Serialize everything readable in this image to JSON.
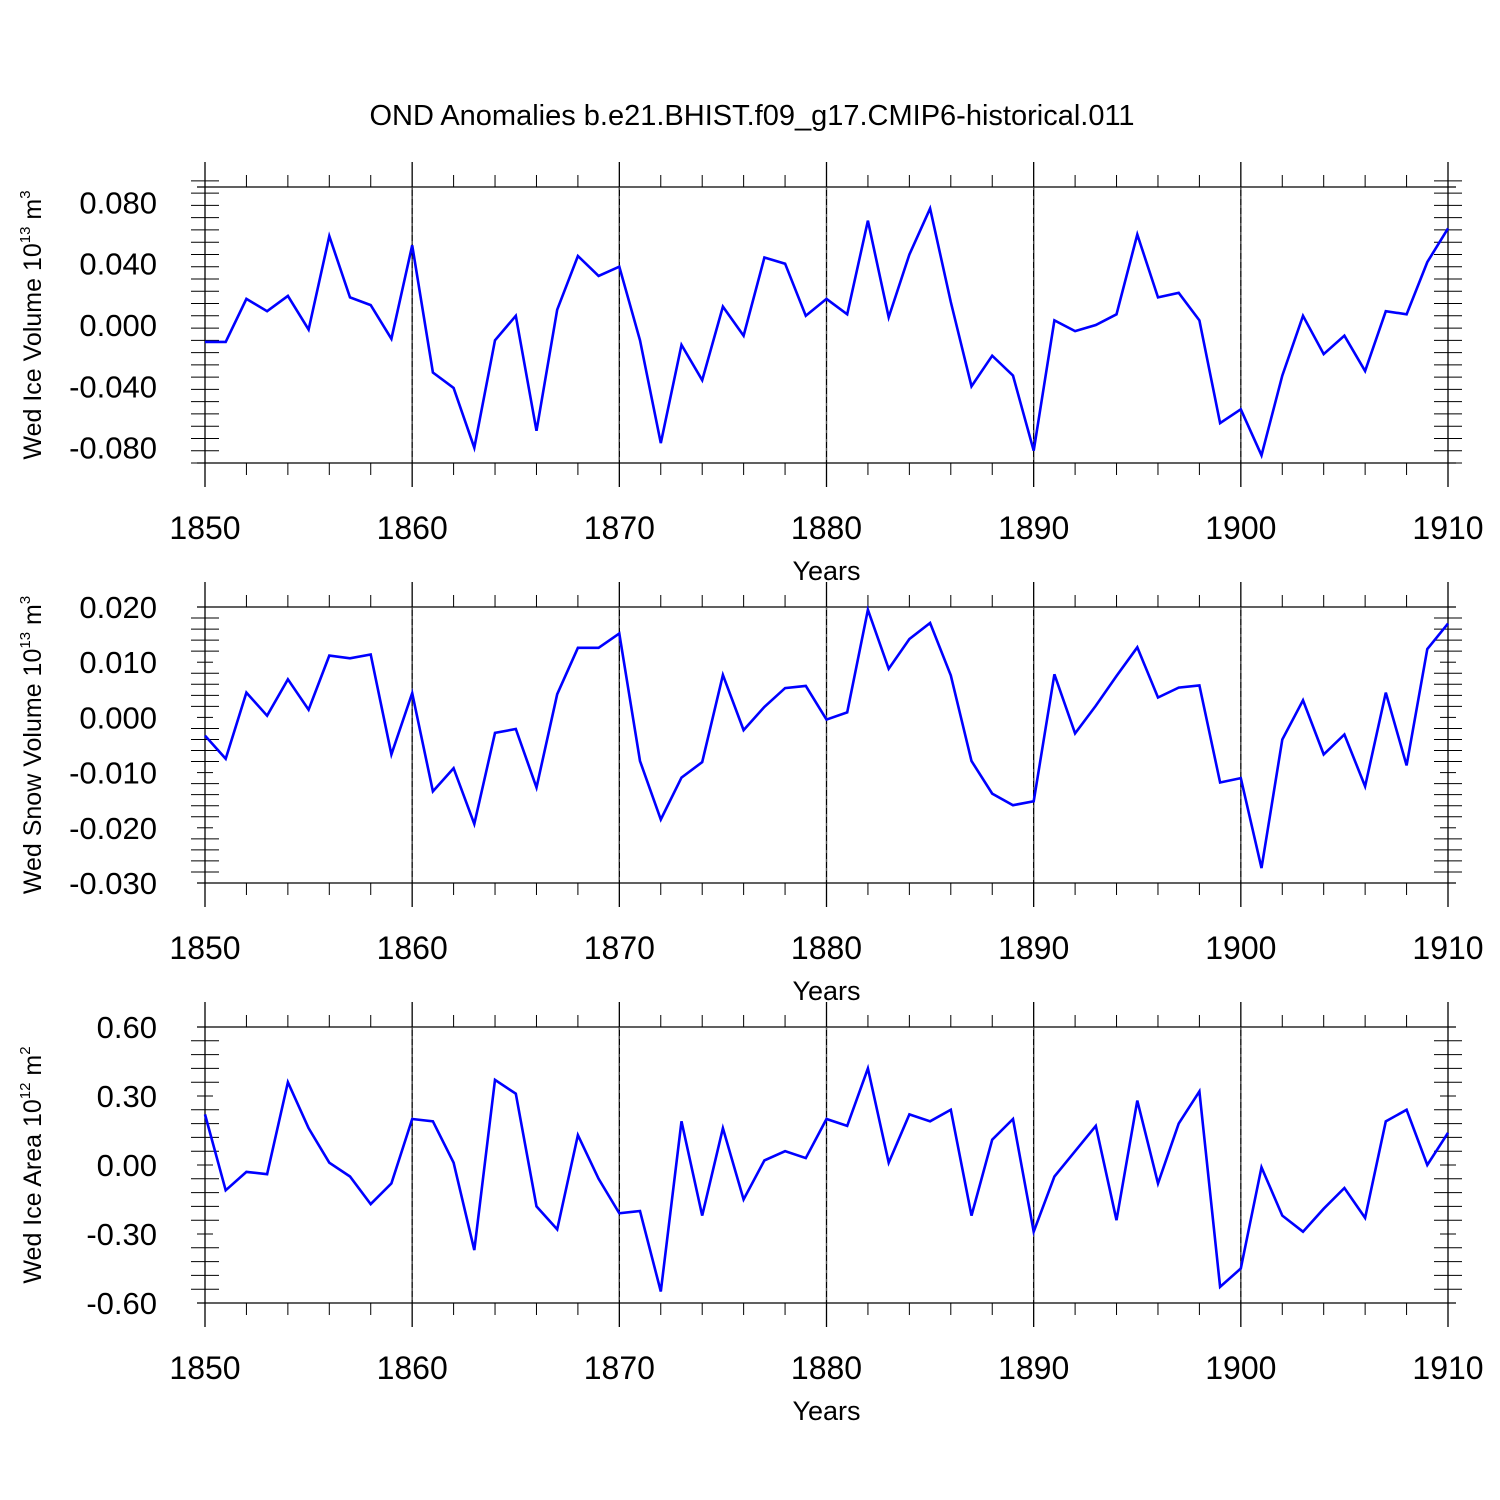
{
  "title": "OND Anomalies b.e21.BHIST.f09_g17.CMIP6-historical.011",
  "chart_data": [
    {
      "type": "line",
      "ylabel_main": "Wed Ice Volume 10",
      "ylabel_exp": "13",
      "ylabel_unit": " m",
      "ylabel_unit_exp": "3",
      "xlabel": "Years",
      "xlim": [
        1850,
        1910
      ],
      "ylim": [
        -0.09,
        0.09
      ],
      "xticks": [
        "1850",
        "1860",
        "1870",
        "1880",
        "1890",
        "1900",
        "1910"
      ],
      "yticks": [
        {
          "value": 0.08,
          "label": "0.080"
        },
        {
          "value": 0.04,
          "label": "0.040"
        },
        {
          "value": 0.0,
          "label": "0.000"
        },
        {
          "value": -0.04,
          "label": "-0.040"
        },
        {
          "value": -0.08,
          "label": "-0.080"
        }
      ],
      "line_color": "#0000ff",
      "x": [
        1850,
        1851,
        1852,
        1853,
        1854,
        1855,
        1856,
        1857,
        1858,
        1859,
        1860,
        1861,
        1862,
        1863,
        1864,
        1865,
        1866,
        1867,
        1868,
        1869,
        1870,
        1871,
        1872,
        1873,
        1874,
        1875,
        1876,
        1877,
        1878,
        1879,
        1880,
        1881,
        1882,
        1883,
        1884,
        1885,
        1886,
        1887,
        1888,
        1889,
        1890,
        1891,
        1892,
        1893,
        1894,
        1895,
        1896,
        1897,
        1898,
        1899,
        1900,
        1901,
        1902,
        1903,
        1904,
        1905,
        1906,
        1907,
        1908,
        1909,
        1910
      ],
      "values": [
        -0.011,
        -0.011,
        0.017,
        0.009,
        0.019,
        -0.003,
        0.058,
        0.018,
        0.013,
        -0.009,
        0.052,
        -0.031,
        -0.041,
        -0.08,
        -0.01,
        0.006,
        -0.069,
        0.01,
        0.045,
        0.032,
        0.038,
        -0.01,
        -0.077,
        -0.013,
        -0.036,
        0.012,
        -0.007,
        0.044,
        0.04,
        0.006,
        0.017,
        0.007,
        0.068,
        0.005,
        0.046,
        0.076,
        0.015,
        -0.04,
        -0.02,
        -0.033,
        -0.082,
        0.003,
        -0.004,
        0.0,
        0.007,
        0.059,
        0.018,
        0.021,
        0.003,
        -0.064,
        -0.055,
        -0.085,
        -0.033,
        0.006,
        -0.019,
        -0.007,
        -0.03,
        0.009,
        0.007,
        0.041,
        0.063
      ]
    },
    {
      "type": "line",
      "ylabel_main": "Wed Snow Volume 10",
      "ylabel_exp": "13",
      "ylabel_unit": " m",
      "ylabel_unit_exp": "3",
      "xlabel": "Years",
      "xlim": [
        1850,
        1910
      ],
      "ylim": [
        -0.03,
        0.02
      ],
      "xticks": [
        "1850",
        "1860",
        "1870",
        "1880",
        "1890",
        "1900",
        "1910"
      ],
      "yticks": [
        {
          "value": 0.02,
          "label": "0.020"
        },
        {
          "value": 0.01,
          "label": "0.010"
        },
        {
          "value": 0.0,
          "label": "0.000"
        },
        {
          "value": -0.01,
          "label": "-0.010"
        },
        {
          "value": -0.02,
          "label": "-0.020"
        },
        {
          "value": -0.03,
          "label": "-0.030"
        }
      ],
      "line_color": "#0000ff",
      "x": [
        1850,
        1851,
        1852,
        1853,
        1854,
        1855,
        1856,
        1857,
        1858,
        1859,
        1860,
        1861,
        1862,
        1863,
        1864,
        1865,
        1866,
        1867,
        1868,
        1869,
        1870,
        1871,
        1872,
        1873,
        1874,
        1875,
        1876,
        1877,
        1878,
        1879,
        1880,
        1881,
        1882,
        1883,
        1884,
        1885,
        1886,
        1887,
        1888,
        1889,
        1890,
        1891,
        1892,
        1893,
        1894,
        1895,
        1896,
        1897,
        1898,
        1899,
        1900,
        1901,
        1902,
        1903,
        1904,
        1905,
        1906,
        1907,
        1908,
        1909,
        1910
      ],
      "values": [
        -0.0033,
        -0.0075,
        0.0045,
        0.0003,
        0.0069,
        0.0014,
        0.0112,
        0.0107,
        0.0114,
        -0.0067,
        0.0044,
        -0.0134,
        -0.0092,
        -0.0193,
        -0.0028,
        -0.0021,
        -0.0127,
        0.0042,
        0.0126,
        0.0126,
        0.0152,
        -0.0079,
        -0.0185,
        -0.0109,
        -0.0081,
        0.0077,
        -0.0023,
        0.0019,
        0.0053,
        0.0057,
        -0.0004,
        0.0009,
        0.0195,
        0.0088,
        0.0142,
        0.0171,
        0.0076,
        -0.0079,
        -0.0138,
        -0.0159,
        -0.0152,
        0.0078,
        -0.0029,
        0.0021,
        0.0075,
        0.0127,
        0.0036,
        0.0054,
        0.0058,
        -0.0118,
        -0.011,
        -0.0273,
        -0.004,
        0.0031,
        -0.0067,
        -0.0031,
        -0.0125,
        0.0045,
        -0.0087,
        0.0124,
        0.017
      ]
    },
    {
      "type": "line",
      "ylabel_main": "Wed Ice Area 10",
      "ylabel_exp": "12",
      "ylabel_unit": " m",
      "ylabel_unit_exp": "2",
      "xlabel": "Years",
      "xlim": [
        1850,
        1910
      ],
      "ylim": [
        -0.6,
        0.6
      ],
      "xticks": [
        "1850",
        "1860",
        "1870",
        "1880",
        "1890",
        "1900",
        "1910"
      ],
      "yticks": [
        {
          "value": 0.6,
          "label": "0.60"
        },
        {
          "value": 0.3,
          "label": "0.30"
        },
        {
          "value": 0.0,
          "label": "0.00"
        },
        {
          "value": -0.3,
          "label": "-0.30"
        },
        {
          "value": -0.6,
          "label": "-0.60"
        }
      ],
      "line_color": "#0000ff",
      "x": [
        1850,
        1851,
        1852,
        1853,
        1854,
        1855,
        1856,
        1857,
        1858,
        1859,
        1860,
        1861,
        1862,
        1863,
        1864,
        1865,
        1866,
        1867,
        1868,
        1869,
        1870,
        1871,
        1872,
        1873,
        1874,
        1875,
        1876,
        1877,
        1878,
        1879,
        1880,
        1881,
        1882,
        1883,
        1884,
        1885,
        1886,
        1887,
        1888,
        1889,
        1890,
        1891,
        1892,
        1893,
        1894,
        1895,
        1896,
        1897,
        1898,
        1899,
        1900,
        1901,
        1902,
        1903,
        1904,
        1905,
        1906,
        1907,
        1908,
        1909,
        1910
      ],
      "values": [
        0.22,
        -0.11,
        -0.03,
        -0.04,
        0.36,
        0.16,
        0.01,
        -0.05,
        -0.17,
        -0.08,
        0.2,
        0.19,
        0.01,
        -0.37,
        0.37,
        0.31,
        -0.18,
        -0.28,
        0.13,
        -0.06,
        -0.21,
        -0.2,
        -0.55,
        0.19,
        -0.22,
        0.16,
        -0.15,
        0.02,
        0.06,
        0.03,
        0.2,
        0.17,
        0.42,
        0.01,
        0.22,
        0.19,
        0.24,
        -0.22,
        0.11,
        0.2,
        -0.29,
        -0.05,
        0.06,
        0.17,
        -0.24,
        0.28,
        -0.08,
        0.18,
        0.32,
        -0.53,
        -0.45,
        -0.01,
        -0.22,
        -0.29,
        -0.19,
        -0.1,
        -0.23,
        0.19,
        0.24,
        0.0,
        0.14
      ]
    }
  ]
}
